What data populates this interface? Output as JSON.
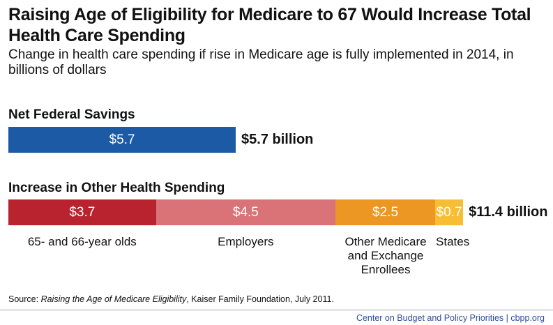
{
  "title": "Raising Age of Eligibility for Medicare to 67 Would Increase Total Health Care Spending",
  "subtitle": "Change in health care spending if rise in Medicare age is fully implemented in 2014, in billions of dollars",
  "chart_data": [
    {
      "type": "bar",
      "orientation": "horizontal",
      "stacked": true,
      "title": "Net Federal Savings",
      "unit": "billions of dollars",
      "series": [
        {
          "value": 5.7,
          "label": "$5.7",
          "color": "#1d5aa6"
        }
      ],
      "total": 5.7,
      "total_label": "$5.7 billion"
    },
    {
      "type": "bar",
      "orientation": "horizontal",
      "stacked": true,
      "title": "Increase in Other Health Spending",
      "unit": "billions of dollars",
      "series": [
        {
          "name": "65- and 66-year olds",
          "value": 3.7,
          "label": "$3.7",
          "color": "#b8232f"
        },
        {
          "name": "Employers",
          "value": 4.5,
          "label": "$4.5",
          "color": "#d97378"
        },
        {
          "name": "Other Medicare and Exchange Enrollees",
          "value": 2.5,
          "label": "$2.5",
          "color": "#ec9623"
        },
        {
          "name": "States",
          "value": 0.7,
          "label": "$0.7",
          "color": "#f7bd33"
        }
      ],
      "total": 11.4,
      "total_label": "$11.4 billion"
    }
  ],
  "source": {
    "prefix": "Source: ",
    "publication": "Raising the Age of Medicare Eligibility",
    "suffix": ", Kaiser Family Foundation, July 2011."
  },
  "credit": "Center on Budget and Policy Priorities | cbpp.org"
}
